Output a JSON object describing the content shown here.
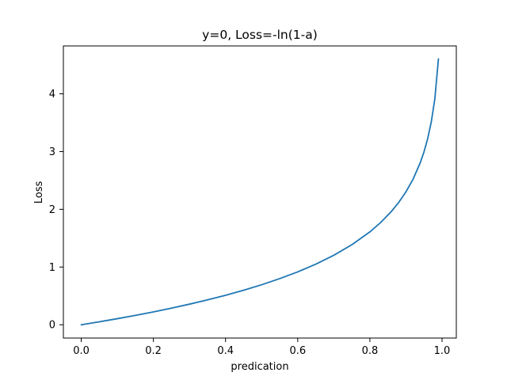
{
  "chart_data": {
    "type": "line",
    "title": "y=0, Loss=-ln(1-a)",
    "xlabel": "predication",
    "ylabel": "Loss",
    "xlim": [
      -0.0495,
      1.0395
    ],
    "ylim": [
      -0.23,
      4.83
    ],
    "xticks": [
      0.0,
      0.2,
      0.4,
      0.6,
      0.8,
      1.0
    ],
    "xtick_labels": [
      "0.0",
      "0.2",
      "0.4",
      "0.6",
      "0.8",
      "1.0"
    ],
    "yticks": [
      0,
      1,
      2,
      3,
      4
    ],
    "ytick_labels": [
      "0",
      "1",
      "2",
      "3",
      "4"
    ],
    "grid": false,
    "series": [
      {
        "color": "#1f77b4",
        "x": [
          0.0,
          0.05,
          0.1,
          0.15,
          0.2,
          0.25,
          0.3,
          0.35,
          0.4,
          0.45,
          0.5,
          0.55,
          0.6,
          0.65,
          0.7,
          0.75,
          0.8,
          0.83,
          0.86,
          0.88,
          0.9,
          0.92,
          0.94,
          0.95,
          0.96,
          0.97,
          0.98,
          0.99
        ],
        "y": [
          0.0,
          0.051,
          0.105,
          0.163,
          0.223,
          0.288,
          0.357,
          0.431,
          0.511,
          0.598,
          0.693,
          0.799,
          0.916,
          1.05,
          1.204,
          1.386,
          1.609,
          1.772,
          1.966,
          2.12,
          2.303,
          2.526,
          2.813,
          2.996,
          3.219,
          3.507,
          3.912,
          4.605
        ]
      }
    ]
  }
}
